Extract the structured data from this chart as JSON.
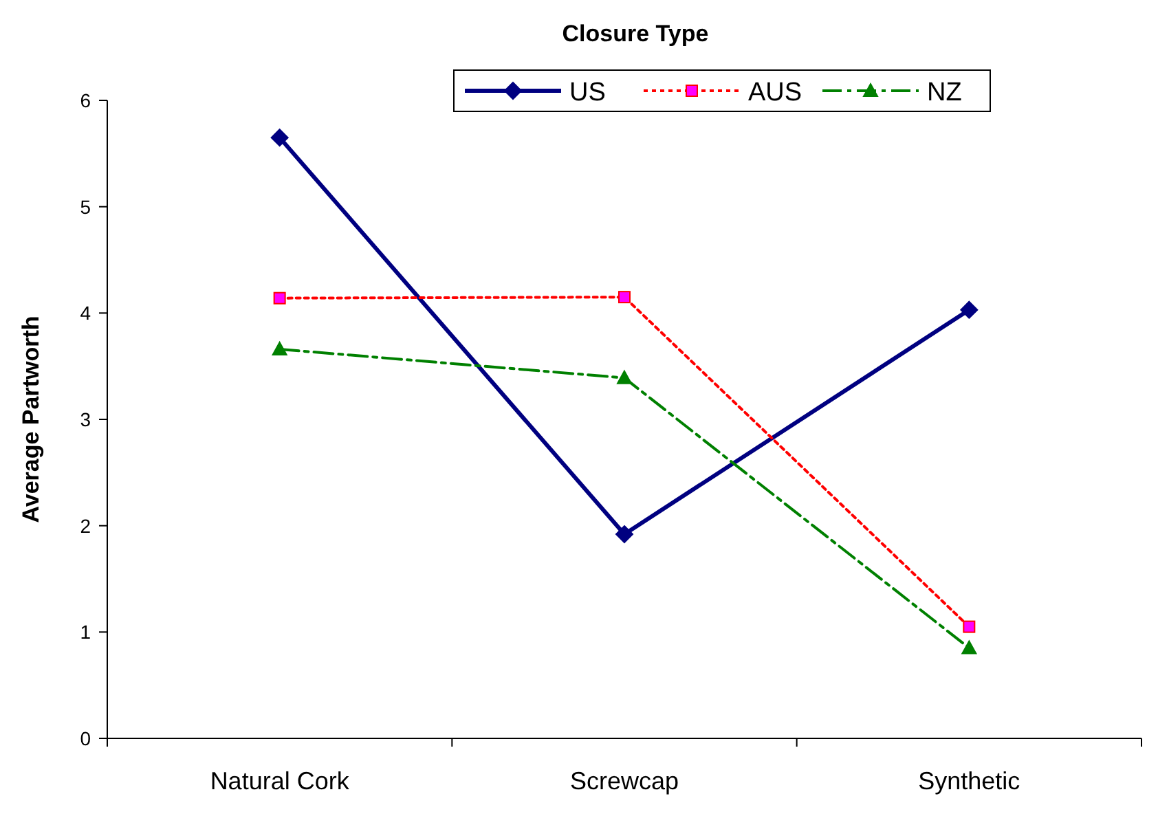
{
  "chart_data": {
    "type": "line",
    "title": "Closure Type",
    "ylabel": "Average Partworth",
    "categories": [
      "Natural Cork",
      "Screwcap",
      "Synthetic"
    ],
    "ylim": [
      0,
      6
    ],
    "yticks": [
      0,
      1,
      2,
      3,
      4,
      5,
      6
    ],
    "grid": false,
    "legend": "top right",
    "series": [
      {
        "name": "US",
        "color": "#000080",
        "values": [
          5.65,
          1.92,
          4.03
        ],
        "marker": "diamond",
        "line_style": "solid"
      },
      {
        "name": "AUS",
        "color": "#ff0000",
        "values": [
          4.14,
          4.15,
          1.05
        ],
        "marker": "square",
        "line_style": "dotted"
      },
      {
        "name": "NZ",
        "color": "#008000",
        "values": [
          3.66,
          3.39,
          0.85
        ],
        "marker": "triangle",
        "line_style": "dashed"
      }
    ]
  }
}
